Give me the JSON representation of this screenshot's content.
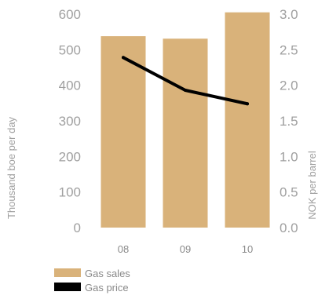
{
  "chart_data": {
    "type": "bar",
    "categories": [
      "08",
      "09",
      "10"
    ],
    "series": [
      {
        "name": "Gas sales",
        "type": "bar",
        "axis": "left",
        "values": [
          538,
          531,
          605
        ],
        "color": "#D9B27A"
      },
      {
        "name": "Gas price",
        "type": "line",
        "axis": "right",
        "values": [
          2.39,
          1.93,
          1.74
        ],
        "color": "#000000"
      }
    ],
    "ylabel": "Thousand boe per day",
    "y2label": "NOK per barrel",
    "ylim": [
      0,
      600
    ],
    "y2lim": [
      0,
      3.0
    ],
    "yticks": [
      "0",
      "100",
      "200",
      "300",
      "400",
      "500",
      "600"
    ],
    "y2ticks": [
      "0.0",
      "0.5",
      "1.0",
      "1.5",
      "2.0",
      "2.5",
      "3.0"
    ],
    "grid": false,
    "legend": "bottom-left",
    "tick_color": "#a0a0a0"
  }
}
